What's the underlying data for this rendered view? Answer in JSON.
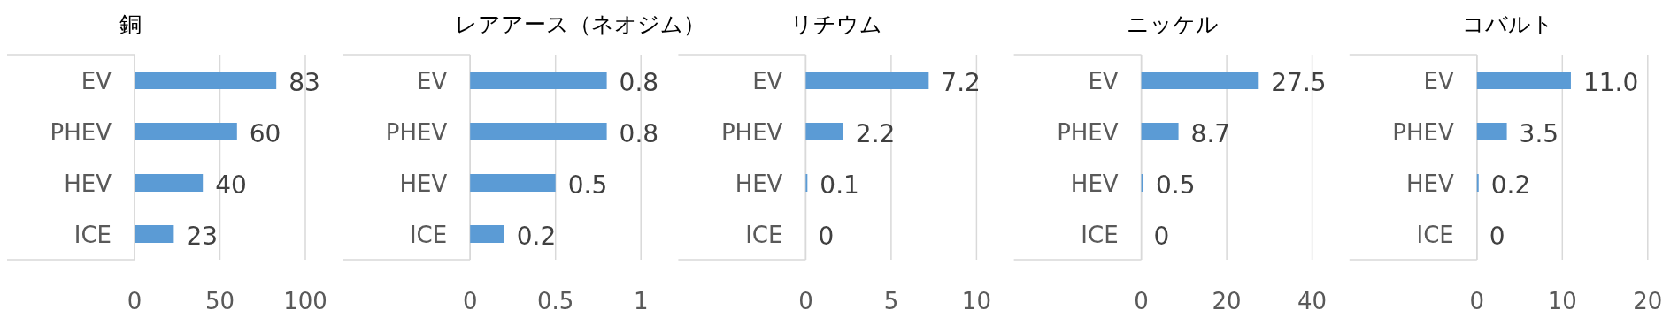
{
  "chart_data": [
    {
      "type": "bar",
      "orientation": "horizontal",
      "title": "銅",
      "categories": [
        "EV",
        "PHEV",
        "HEV",
        "ICE"
      ],
      "values": [
        83,
        60,
        40,
        23
      ],
      "value_labels": [
        "83",
        "60",
        "40",
        "23"
      ],
      "color": "#5b9bd5",
      "xlim": [
        0,
        100
      ],
      "xticks": [
        0,
        50,
        100
      ],
      "grid": "x"
    },
    {
      "type": "bar",
      "orientation": "horizontal",
      "title": "レアアース（ネオジム）",
      "categories": [
        "EV",
        "PHEV",
        "HEV",
        "ICE"
      ],
      "values": [
        0.8,
        0.8,
        0.5,
        0.2
      ],
      "value_labels": [
        "0.8",
        "0.8",
        "0.5",
        "0.2"
      ],
      "color": "#5b9bd5",
      "xlim": [
        0,
        1
      ],
      "xticks": [
        0,
        0.5,
        1
      ],
      "grid": "x"
    },
    {
      "type": "bar",
      "orientation": "horizontal",
      "title": "リチウム",
      "categories": [
        "EV",
        "PHEV",
        "HEV",
        "ICE"
      ],
      "values": [
        7.2,
        2.2,
        0.1,
        0
      ],
      "value_labels": [
        "7.2",
        "2.2",
        "0.1",
        "0"
      ],
      "color": "#5b9bd5",
      "xlim": [
        0,
        10
      ],
      "xticks": [
        0,
        5,
        10
      ],
      "grid": "x"
    },
    {
      "type": "bar",
      "orientation": "horizontal",
      "title": "ニッケル",
      "categories": [
        "EV",
        "PHEV",
        "HEV",
        "ICE"
      ],
      "values": [
        27.5,
        8.7,
        0.5,
        0
      ],
      "value_labels": [
        "27.5",
        "8.7",
        "0.5",
        "0"
      ],
      "color": "#5b9bd5",
      "xlim": [
        0,
        40
      ],
      "xticks": [
        0,
        20,
        40
      ],
      "grid": "x"
    },
    {
      "type": "bar",
      "orientation": "horizontal",
      "title": "コバルト",
      "categories": [
        "EV",
        "PHEV",
        "HEV",
        "ICE"
      ],
      "values": [
        11.0,
        3.5,
        0.2,
        0
      ],
      "value_labels": [
        "11.0",
        "3.5",
        "0.2",
        "0"
      ],
      "color": "#5b9bd5",
      "xlim": [
        0,
        20
      ],
      "xticks": [
        0,
        10,
        20
      ],
      "grid": "x"
    }
  ]
}
